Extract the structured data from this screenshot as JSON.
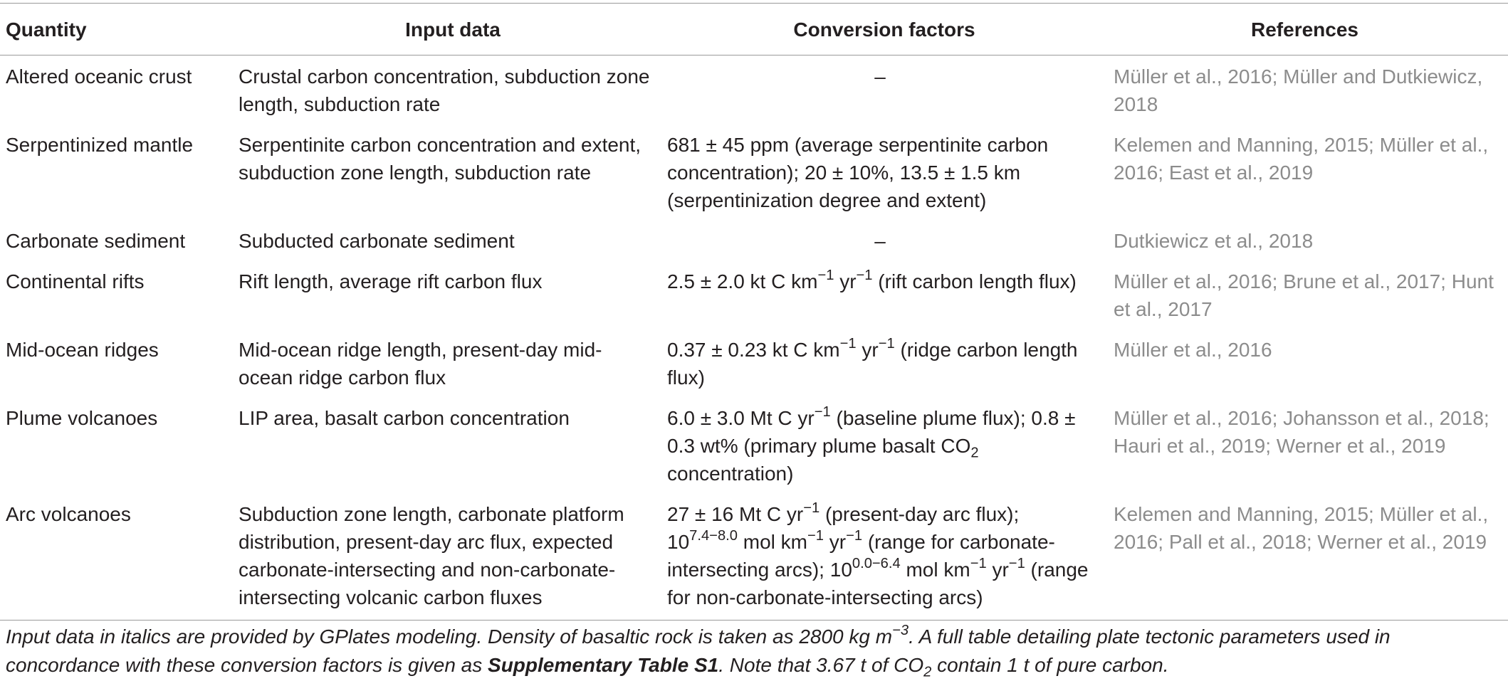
{
  "table": {
    "headers": {
      "quantity": "Quantity",
      "input": "Input data",
      "conversion": "Conversion factors",
      "references": "References"
    },
    "rows": [
      {
        "quantity": "Altered oceanic crust",
        "input": "Crustal carbon concentration, subduction zone length, subduction rate",
        "conversion": "–",
        "references": "Müller et al., 2016; Müller and Dutkiewicz, 2018"
      },
      {
        "quantity": "Serpentinized mantle",
        "input": "Serpentinite carbon concentration and extent, subduction zone length, subduction rate",
        "conversion": "681 ± 45 ppm (average serpentinite carbon concentration); 20 ± 10%, 13.5 ± 1.5 km (serpentinization degree and extent)",
        "references": "Kelemen and Manning, 2015; Müller et al., 2016; East et al., 2019"
      },
      {
        "quantity": "Carbonate sediment",
        "input": "Subducted carbonate sediment",
        "conversion": "–",
        "references": "Dutkiewicz et al., 2018"
      },
      {
        "quantity": "Continental rifts",
        "input": "Rift length, average rift carbon flux",
        "conversion_parts": {
          "a": "2.5 ± 2.0 kt C km",
          "sup1": "−1",
          "b": " yr",
          "sup2": "−1",
          "c": " (rift carbon length flux)"
        },
        "references": "Müller et al., 2016; Brune et al., 2017; Hunt et al., 2017"
      },
      {
        "quantity": "Mid-ocean ridges",
        "input": "Mid-ocean ridge length, present-day mid-ocean ridge carbon flux",
        "conversion_parts": {
          "a": "0.37 ± 0.23 kt C km",
          "sup1": "−1",
          "b": " yr",
          "sup2": "−1",
          "c": " (ridge carbon length flux)"
        },
        "references": "Müller et al., 2016"
      },
      {
        "quantity": "Plume volcanoes",
        "input": "LIP area, basalt carbon concentration",
        "conversion_parts": {
          "a": "6.0 ± 3.0 Mt C yr",
          "sup1": "−1",
          "b": " (baseline plume flux); 0.8 ± 0.3 wt% (primary plume basalt CO",
          "sub1": "2",
          "c": " concentration)"
        },
        "references": "Müller et al., 2016; Johansson et al., 2018; Hauri et al., 2019; Werner et al., 2019"
      },
      {
        "quantity": "Arc volcanoes",
        "input": "Subduction zone length, carbonate platform distribution, present-day arc flux, expected carbonate-intersecting and non-carbonate-intersecting volcanic carbon fluxes",
        "conversion_parts": {
          "a": "27 ± 16 Mt C yr",
          "sup1": "−1",
          "b": " (present-day arc flux); 10",
          "sup2": "7.4−8.0",
          "c": " mol km",
          "sup3": "−1",
          "d": " yr",
          "sup4": "−1",
          "e": " (range for carbonate-intersecting arcs); 10",
          "sup5": "0.0−6.4",
          "f": " mol km",
          "sup6": "−1",
          "g": " yr",
          "sup7": "−1",
          "h": " (range for non-carbonate-intersecting arcs)"
        },
        "references": "Kelemen and Manning, 2015; Müller et al., 2016; Pall et al., 2018; Werner et al., 2019"
      }
    ]
  },
  "footnote": {
    "t1": "Input data in italics are provided by GPlates modeling. Density of basaltic rock is taken as 2800 kg m",
    "sup1": "−3",
    "t2": ". A full table detailing plate tectonic parameters used in concordance with these conversion factors is given as ",
    "bold": "Supplementary Table S1",
    "t3": ". Note that 3.67 t of CO",
    "sub1": "2",
    "t4": " contain 1 t of pure carbon."
  }
}
